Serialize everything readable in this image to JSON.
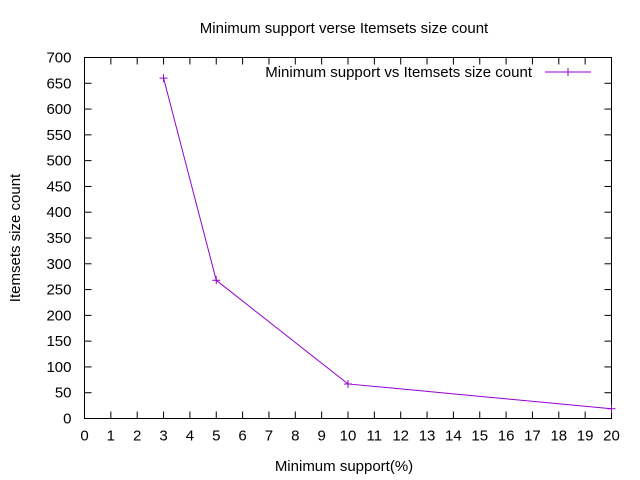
{
  "chart_data": {
    "type": "line",
    "title": "Minimum support verse Itemsets size count",
    "xlabel": "Minimum support(%)",
    "ylabel": "Itemsets size count",
    "xlim": [
      0,
      20
    ],
    "ylim": [
      0,
      700
    ],
    "x_ticks": [
      0,
      1,
      2,
      3,
      4,
      5,
      6,
      7,
      8,
      9,
      10,
      11,
      12,
      13,
      14,
      15,
      16,
      17,
      18,
      19,
      20
    ],
    "y_ticks": [
      0,
      50,
      100,
      150,
      200,
      250,
      300,
      350,
      400,
      450,
      500,
      550,
      600,
      650,
      700
    ],
    "grid": false,
    "legend_position": "top-right",
    "series": [
      {
        "name": "Minimum support vs Itemsets size count",
        "color": "#9400d3",
        "marker": "plus",
        "x": [
          3,
          5,
          10,
          20
        ],
        "y": [
          660,
          268,
          67,
          19
        ]
      }
    ]
  }
}
